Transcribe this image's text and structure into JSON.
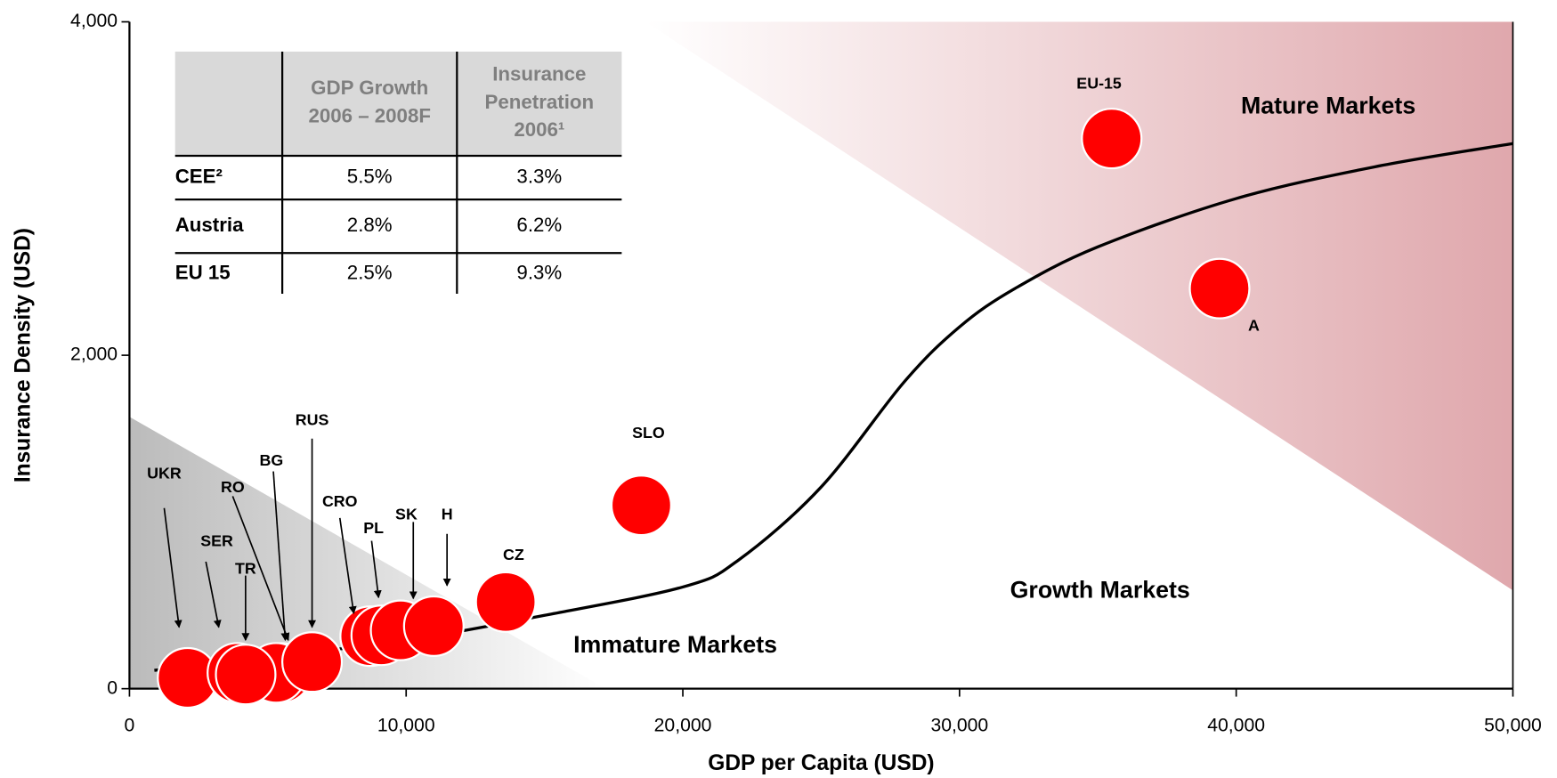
{
  "chart_data": {
    "type": "bubble",
    "xlabel": "GDP per Capita (USD)",
    "ylabel": "Insurance Density (USD)",
    "xlim": [
      0,
      50000
    ],
    "ylim": [
      0,
      4000
    ],
    "xticks": [
      0,
      {
        "value": 10000,
        "label": "10,000"
      },
      {
        "value": 20000,
        "label": "20,000"
      },
      {
        "value": 30000,
        "label": "30,000"
      },
      {
        "value": 40000,
        "label": "40,000"
      },
      {
        "value": 50000,
        "label": "50,000"
      }
    ],
    "yticks": [
      0,
      {
        "value": 2000,
        "label": "2,000"
      },
      {
        "value": 4000,
        "label": "4,000"
      }
    ],
    "color": "#ff0000",
    "points": [
      {
        "name": "UKR",
        "x": 2100,
        "y": 65
      },
      {
        "name": "SER",
        "x": 3900,
        "y": 95
      },
      {
        "name": "TR",
        "x": 4200,
        "y": 85
      },
      {
        "name": "RO",
        "x": 5500,
        "y": 95
      },
      {
        "name": "BG",
        "x": 5300,
        "y": 95
      },
      {
        "name": "RUS",
        "x": 6600,
        "y": 160
      },
      {
        "name": "CRO",
        "x": 8700,
        "y": 315
      },
      {
        "name": "PL",
        "x": 9100,
        "y": 320
      },
      {
        "name": "SK",
        "x": 9800,
        "y": 350
      },
      {
        "name": "H",
        "x": 11000,
        "y": 375
      },
      {
        "name": "CZ",
        "x": 13600,
        "y": 520
      },
      {
        "name": "SLO",
        "x": 18500,
        "y": 1100
      },
      {
        "name": "EU-15",
        "x": 35500,
        "y": 3300
      },
      {
        "name": "A",
        "x": 39400,
        "y": 2400
      }
    ],
    "trend": {
      "x": [
        900,
        5000,
        10000,
        15000,
        20000,
        22000,
        25000,
        28000,
        30000,
        32000,
        35000,
        40000,
        45000,
        50000
      ],
      "y": [
        110,
        190,
        290,
        440,
        610,
        770,
        1210,
        1840,
        2170,
        2400,
        2650,
        2940,
        3130,
        3270
      ]
    },
    "annotations": [
      "Mature Markets",
      "Growth Markets",
      "Immature Markets"
    ],
    "table": {
      "header": [
        [],
        [
          "GDP Growth",
          "2006 – 2008F"
        ],
        [
          "Insurance",
          "Penetration",
          "2006¹"
        ]
      ],
      "rows": [
        [
          "CEE²",
          "5.5%",
          "3.3%"
        ],
        [
          "Austria",
          "2.8%",
          "6.2%"
        ],
        [
          "EU 15",
          "2.5%",
          "9.3%"
        ]
      ]
    }
  }
}
